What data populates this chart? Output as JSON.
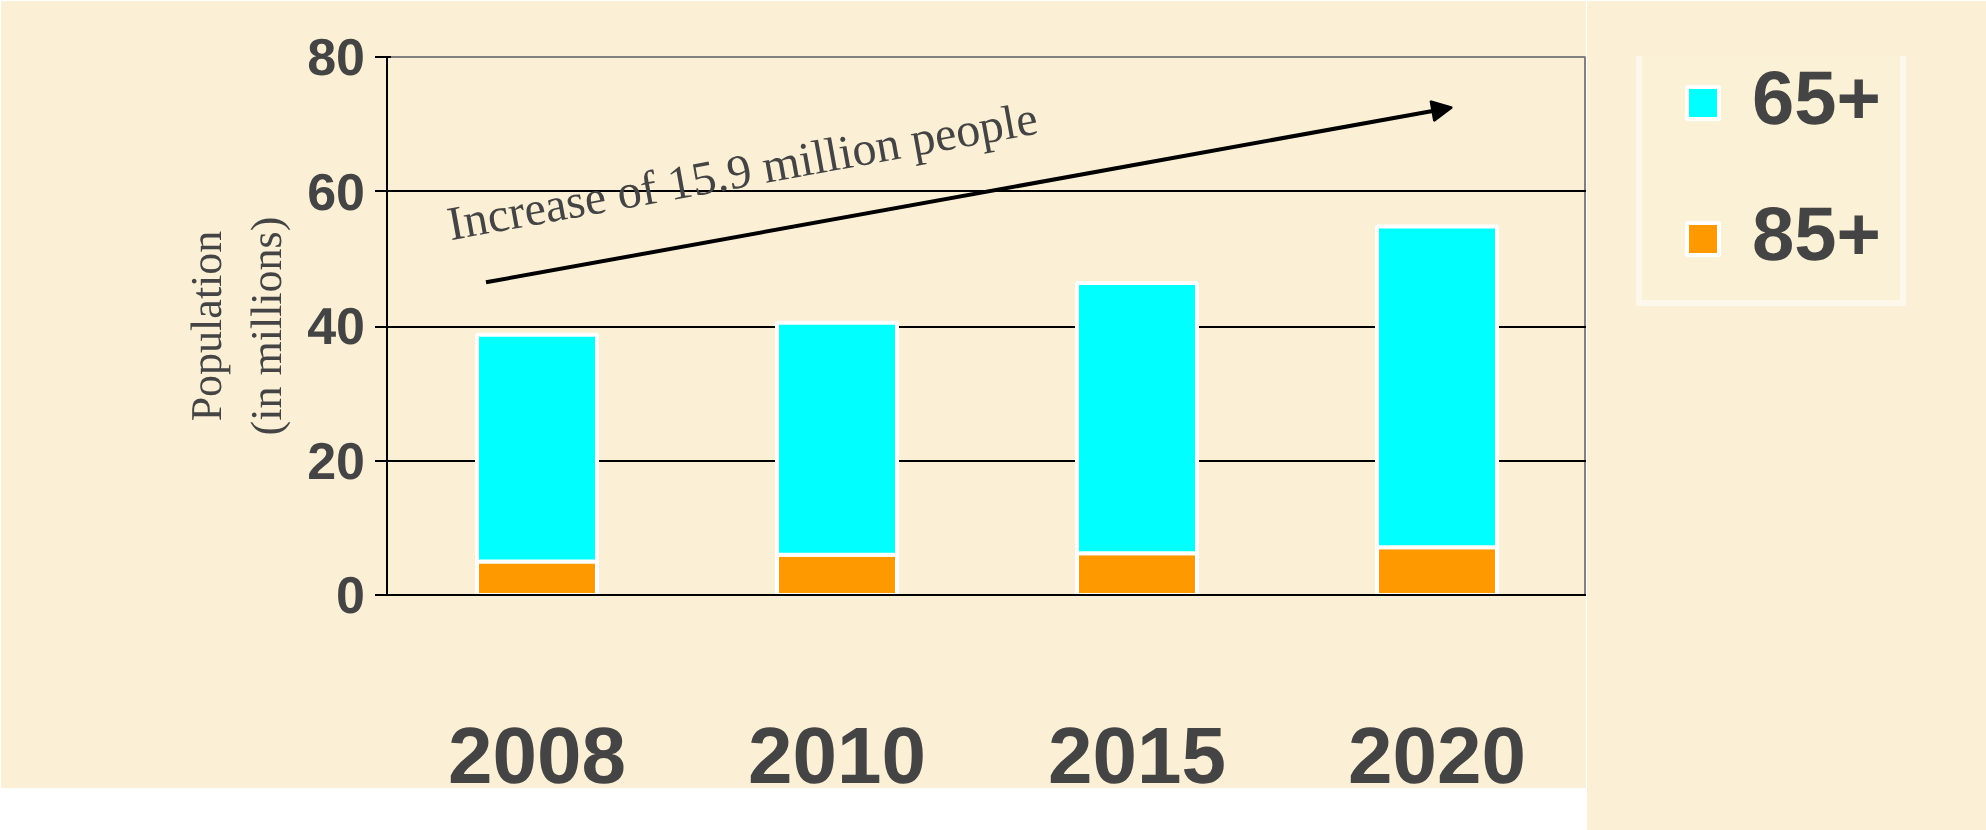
{
  "chart_data": {
    "type": "bar",
    "stacked": true,
    "ylabel": "Population\n(in millions)",
    "categories": [
      "2008",
      "2010",
      "2015",
      "2020"
    ],
    "series": [
      {
        "name": "85+",
        "color": "#ff9900",
        "values": [
          5,
          6,
          6.2,
          7.1
        ]
      },
      {
        "name": "65+",
        "color": "#00ffff",
        "values": [
          33.7,
          34.5,
          40.2,
          47.7
        ]
      }
    ],
    "ylim": [
      0,
      80
    ],
    "yticks": [
      0,
      20,
      40,
      60,
      80
    ],
    "grid": "y",
    "legend": "right",
    "annotations": [
      "Increase of 15.9 million people"
    ]
  }
}
